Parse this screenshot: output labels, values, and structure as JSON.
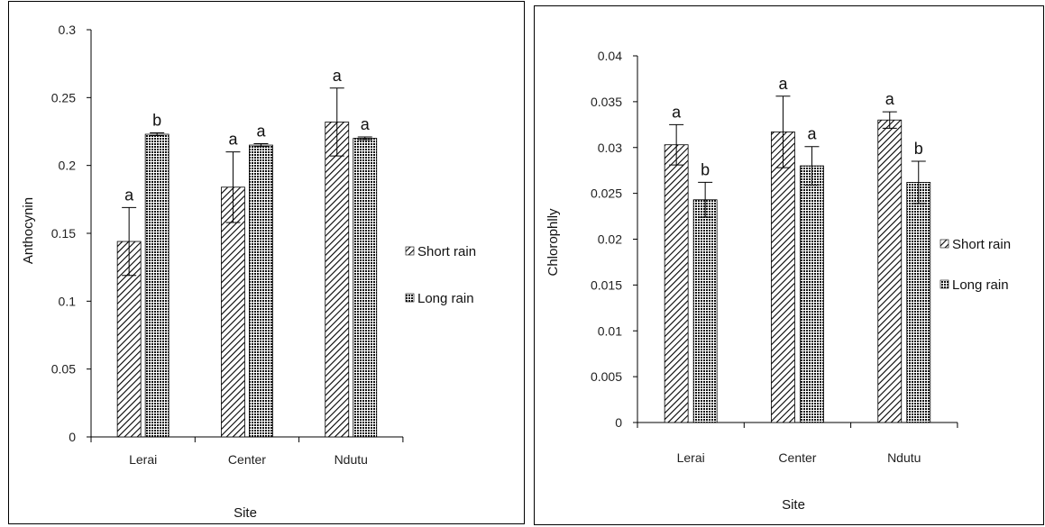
{
  "chart_data": [
    {
      "type": "bar",
      "title": "",
      "xlabel": "Site",
      "ylabel": "Anthocynin",
      "categories": [
        "Lerai",
        "Center",
        "Ndutu"
      ],
      "ylim": [
        0,
        0.3
      ],
      "yticks": [
        0,
        0.05,
        0.1,
        0.15,
        0.2,
        0.25,
        0.3
      ],
      "ytick_labels": [
        "0",
        "0.05",
        "0.1",
        "0.15",
        "0.2",
        "0.25",
        "0.3"
      ],
      "grid": false,
      "legend_position": "right",
      "series": [
        {
          "name": "Short rain",
          "pattern": "diagonal-hatch",
          "values": [
            0.144,
            0.184,
            0.232
          ],
          "errors": [
            0.025,
            0.026,
            0.025
          ],
          "letters": [
            "a",
            "a",
            "a"
          ]
        },
        {
          "name": "Long rain",
          "pattern": "dense-dots",
          "values": [
            0.223,
            0.215,
            0.22
          ],
          "errors": [
            0.001,
            0.001,
            0.001
          ],
          "letters": [
            "b",
            "a",
            "a"
          ]
        }
      ]
    },
    {
      "type": "bar",
      "title": "",
      "xlabel": "Site",
      "ylabel": "Chlorophlly",
      "categories": [
        "Lerai",
        "Center",
        "Ndutu"
      ],
      "ylim": [
        0,
        0.04
      ],
      "yticks": [
        0,
        0.005,
        0.01,
        0.015,
        0.02,
        0.025,
        0.03,
        0.035,
        0.04
      ],
      "ytick_labels": [
        "0",
        "0.005",
        "0.01",
        "0.015",
        "0.02",
        "0.025",
        "0.03",
        "0.035",
        "0.04"
      ],
      "grid": false,
      "legend_position": "right",
      "series": [
        {
          "name": "Short rain",
          "pattern": "diagonal-hatch",
          "values": [
            0.0303,
            0.0317,
            0.033
          ],
          "errors": [
            0.0022,
            0.0039,
            0.0009
          ],
          "letters": [
            "a",
            "a",
            "a"
          ]
        },
        {
          "name": "Long rain",
          "pattern": "dense-dots",
          "values": [
            0.0243,
            0.028,
            0.0262
          ],
          "errors": [
            0.0019,
            0.0021,
            0.0023
          ],
          "letters": [
            "b",
            "a",
            "b"
          ]
        }
      ]
    }
  ]
}
